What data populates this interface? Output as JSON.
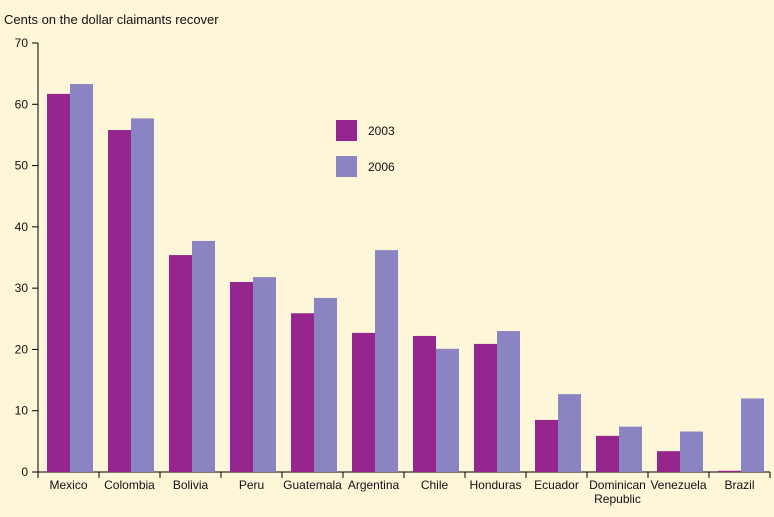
{
  "chart_data": {
    "type": "bar",
    "title": "Cents on the dollar claimants recover",
    "xlabel": "",
    "ylabel": "",
    "ylim": [
      0,
      70
    ],
    "yticks": [
      0,
      10,
      20,
      30,
      40,
      50,
      60,
      70
    ],
    "categories": [
      "Mexico",
      "Colombia",
      "Bolivia",
      "Peru",
      "Guatemala",
      "Argentina",
      "Chile",
      "Honduras",
      "Ecuador",
      "Dominican Republic",
      "Venezuela",
      "Brazil"
    ],
    "category_lines": [
      [
        "Mexico"
      ],
      [
        "Colombia"
      ],
      [
        "Bolivia"
      ],
      [
        "Peru"
      ],
      [
        "Guatemala"
      ],
      [
        "Argentina"
      ],
      [
        "Chile"
      ],
      [
        "Honduras"
      ],
      [
        "Ecuador"
      ],
      [
        "Dominican",
        "Republic"
      ],
      [
        "Venezuela"
      ],
      [
        "Brazil"
      ]
    ],
    "series": [
      {
        "name": "2003",
        "color": "#94268e",
        "values": [
          61.7,
          55.8,
          35.4,
          31.0,
          25.9,
          22.7,
          22.2,
          20.9,
          8.5,
          5.9,
          3.4,
          0.2
        ]
      },
      {
        "name": "2006",
        "color": "#8a84c2",
        "values": [
          63.3,
          57.7,
          37.7,
          31.8,
          28.4,
          36.2,
          20.1,
          23.0,
          12.7,
          7.4,
          6.6,
          12.0
        ]
      }
    ],
    "legend_position": "center-right",
    "grid": false
  }
}
